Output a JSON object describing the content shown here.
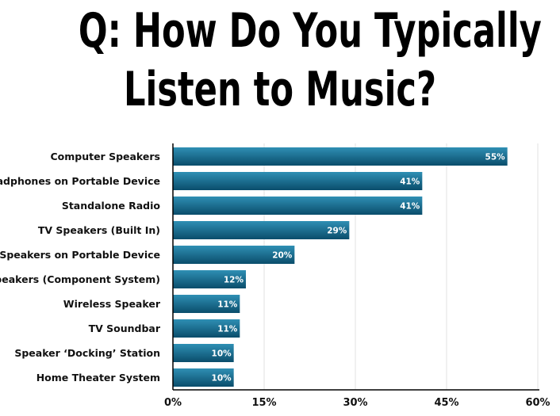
{
  "chart_data": {
    "type": "bar",
    "orientation": "horizontal",
    "title": "Q: How Do You Typically Listen to Music?",
    "title_lines": [
      "Q: How Do You Typically",
      "Listen to Music?"
    ],
    "categories": [
      "Computer Speakers",
      "Headphones on Portable Device",
      "Standalone Radio",
      "TV Speakers (Built In)",
      "Speakers on Portable Device",
      "Loudspeakers (Component System)",
      "Wireless Speaker",
      "TV Soundbar",
      "Speaker ‘Docking’ Station",
      "Home Theater System"
    ],
    "values": [
      55,
      41,
      41,
      29,
      20,
      12,
      11,
      11,
      10,
      10
    ],
    "value_labels": [
      "55%",
      "41%",
      "41%",
      "29%",
      "20%",
      "12%",
      "11%",
      "11%",
      "10%",
      "10%"
    ],
    "xlim": [
      0,
      60
    ],
    "xticks": [
      0,
      15,
      30,
      45,
      60
    ],
    "xtick_labels": [
      "0%",
      "15%",
      "30%",
      "45%",
      "60%"
    ],
    "grid": true,
    "legend": "none",
    "colors": {
      "bar_top": "#2f8fb4",
      "bar_bottom": "#0a4d6b",
      "grid": "#e0e0e0",
      "axis": "#000000"
    }
  }
}
